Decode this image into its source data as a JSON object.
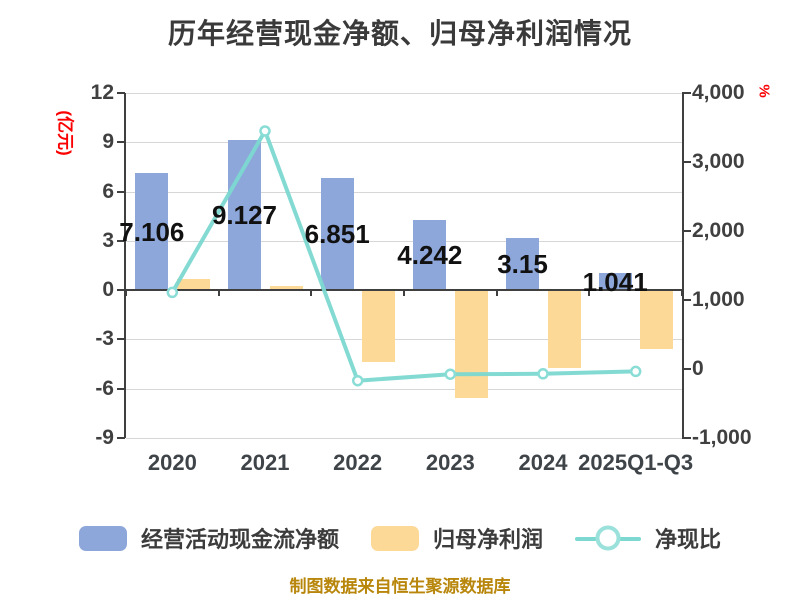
{
  "title": "历年经营现金净额、归母净利润情况",
  "source_note": "制图数据来自恒生聚源数据库",
  "colors": {
    "bar_cash_flow": "#8ea7da",
    "bar_net_profit": "#fdd998",
    "line_ratio": "#7cd8d1",
    "line_marker_ring": "#8addd6",
    "axis_unit_red": "#fa0000",
    "source_note_gold": "#b8860b"
  },
  "left_axis": {
    "unit": "(亿元)",
    "ticks": [
      12,
      9,
      6,
      3,
      0,
      -3,
      -6,
      -9
    ],
    "max": 12,
    "min": -9
  },
  "right_axis": {
    "unit": "%",
    "ticks": [
      "4,000",
      "3,000",
      "2,000",
      "1,000",
      "0",
      "-1,000"
    ],
    "tick_values": [
      4000,
      3000,
      2000,
      1000,
      0,
      -1000
    ],
    "max": 4000,
    "min": -1000
  },
  "chart_data": {
    "type": "bar",
    "title": "历年经营现金净额、归母净利润情况",
    "categories": [
      "2020",
      "2021",
      "2022",
      "2023",
      "2024",
      "2025Q1-Q3"
    ],
    "series": [
      {
        "name": "经营活动现金流净额",
        "type": "bar",
        "axis": "left",
        "unit": "亿元",
        "values": [
          7.106,
          9.127,
          6.851,
          4.242,
          3.15,
          1.041
        ],
        "labels": [
          "7.106",
          "9.127",
          "6.851",
          "4.242",
          "3.15",
          "1.041"
        ]
      },
      {
        "name": "归母净利润",
        "type": "bar",
        "axis": "left",
        "unit": "亿元",
        "values": [
          0.65,
          0.27,
          -4.3,
          -6.5,
          -4.7,
          -3.5
        ]
      },
      {
        "name": "净现比",
        "type": "line",
        "axis": "right",
        "unit": "%",
        "values": [
          1110,
          3450,
          -170,
          -75,
          -70,
          -35
        ]
      }
    ],
    "ylim_left": [
      -9,
      12
    ],
    "ylim_right": [
      -1000,
      4000
    ],
    "grid": true,
    "legend_position": "bottom"
  },
  "legend": [
    {
      "label": "经营活动现金流净额",
      "swatch": "blue-bar"
    },
    {
      "label": "归母净利润",
      "swatch": "orange-bar"
    },
    {
      "label": "净现比",
      "swatch": "teal-line-marker"
    }
  ]
}
